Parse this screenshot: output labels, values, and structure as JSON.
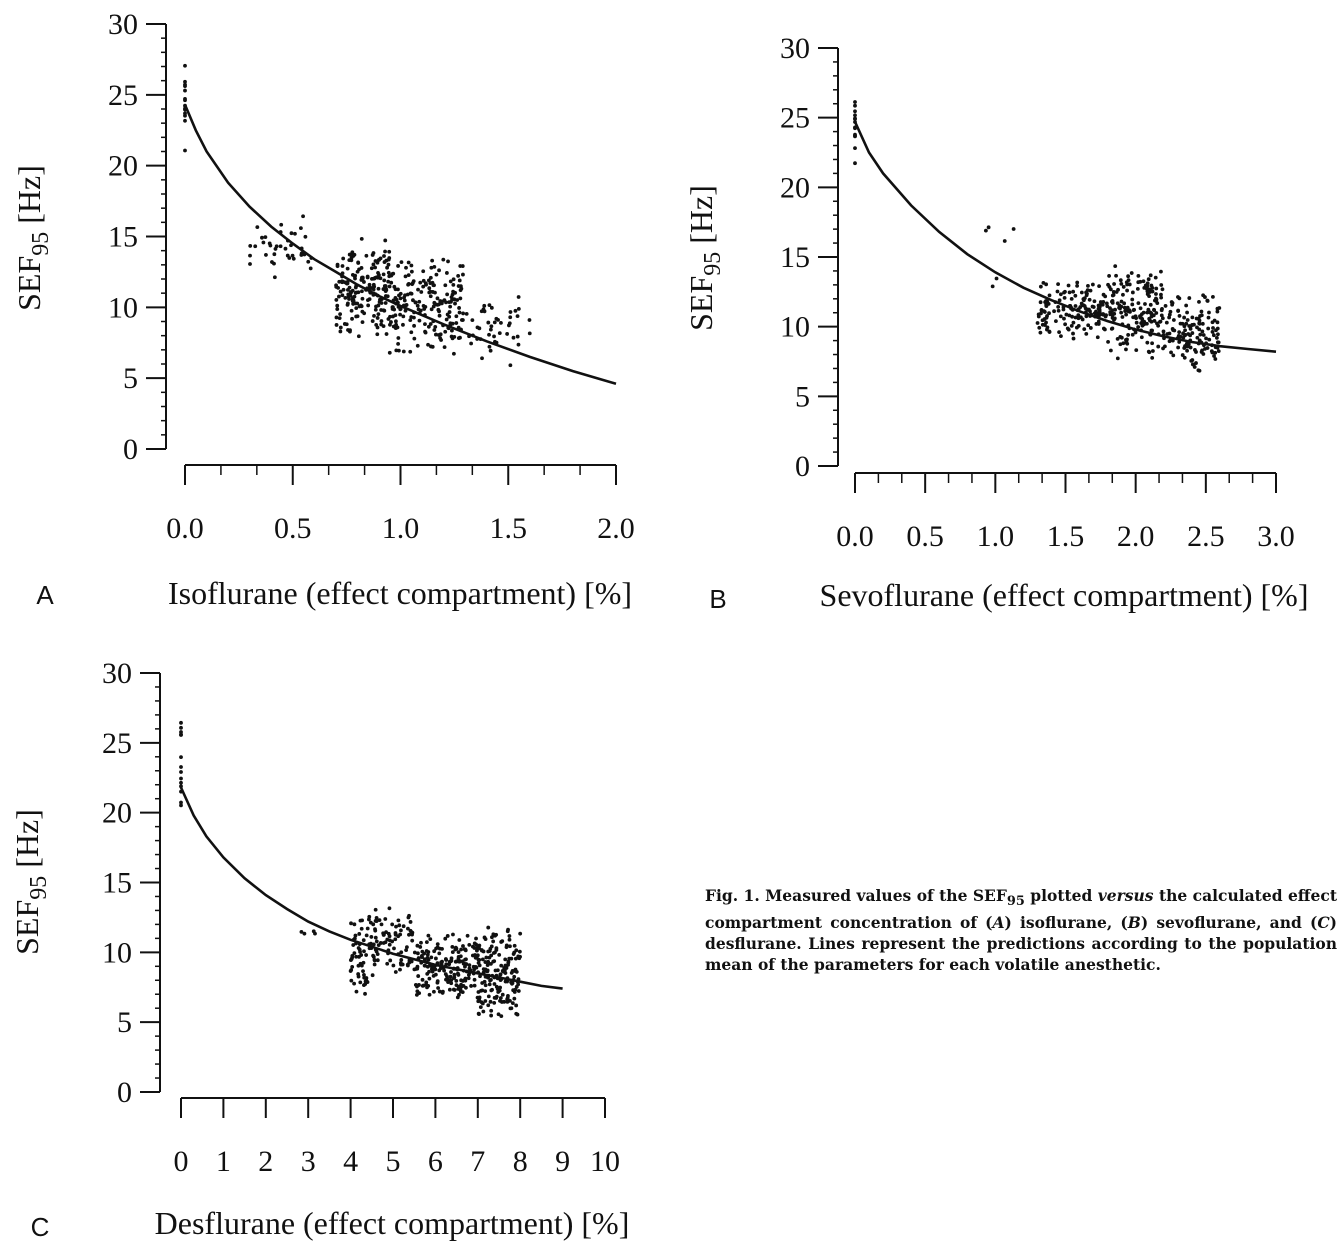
{
  "figure": {
    "caption": {
      "lead": "Fig. 1. Measured values of the SEF",
      "sub": "95",
      "mid": " plotted ",
      "versus": "versus",
      "tail_1": " the calculated effect compartment concentration of (",
      "a": "A",
      "tail_2": ") isoflurane, (",
      "b": "B",
      "tail_3": ") sevoflurane, and (",
      "c": "C",
      "tail_4": ") desflurane. Lines represent the predictions according to the population mean of the parameters for each volatile anesthetic."
    }
  },
  "chart_data": [
    {
      "type": "scatter",
      "panel": "A",
      "xlabel": "Isoflurane (effect compartment) [%]",
      "ylabel_main": "SEF",
      "ylabel_sub": "95",
      "ylabel_unit": " [Hz]",
      "xlim": [
        0,
        2.0
      ],
      "ylim": [
        0,
        30
      ],
      "x_ticks": [
        0.0,
        0.5,
        1.0,
        1.5,
        2.0
      ],
      "x_tick_labels": [
        "0.0",
        "0.5",
        "1.0",
        "1.5",
        "2.0"
      ],
      "y_ticks": [
        0,
        5,
        10,
        15,
        20,
        25,
        30
      ],
      "y_tick_labels": [
        "0",
        "5",
        "10",
        "15",
        "20",
        "25",
        "30"
      ],
      "curve": {
        "x": [
          0,
          0.05,
          0.1,
          0.2,
          0.3,
          0.4,
          0.5,
          0.6,
          0.7,
          0.8,
          0.9,
          1.0,
          1.2,
          1.4,
          1.6,
          1.8,
          2.0
        ],
        "y": [
          24.3,
          22.5,
          21.0,
          18.8,
          17.1,
          15.7,
          14.5,
          13.4,
          12.5,
          11.6,
          10.8,
          10.1,
          8.8,
          7.6,
          6.5,
          5.5,
          4.6
        ]
      },
      "point_groups": [
        {
          "x": [
            0,
            0
          ],
          "y": [
            19.5,
            29.0
          ],
          "n": 14
        },
        {
          "x": [
            0.3,
            0.6
          ],
          "y": [
            11.5,
            17.0
          ],
          "n": 40
        },
        {
          "x": [
            0.7,
            0.95
          ],
          "y": [
            7.5,
            15.0
          ],
          "n": 190
        },
        {
          "x": [
            0.95,
            1.3
          ],
          "y": [
            6.5,
            14.0
          ],
          "n": 200
        },
        {
          "x": [
            1.3,
            1.6
          ],
          "y": [
            5.5,
            11.0
          ],
          "n": 45
        }
      ]
    },
    {
      "type": "scatter",
      "panel": "B",
      "xlabel": "Sevoflurane (effect compartment) [%]",
      "ylabel_main": "SEF",
      "ylabel_sub": "95",
      "ylabel_unit": " [Hz]",
      "xlim": [
        0,
        3.0
      ],
      "ylim": [
        0,
        30
      ],
      "x_ticks": [
        0.0,
        0.5,
        1.0,
        1.5,
        2.0,
        2.5,
        3.0
      ],
      "x_tick_labels": [
        "0.0",
        "0.5",
        "1.0",
        "1.5",
        "2.0",
        "2.5",
        "3.0"
      ],
      "y_ticks": [
        0,
        5,
        10,
        15,
        20,
        25,
        30
      ],
      "y_tick_labels": [
        "0",
        "5",
        "10",
        "15",
        "20",
        "25",
        "30"
      ],
      "curve": {
        "x": [
          0,
          0.1,
          0.2,
          0.4,
          0.6,
          0.8,
          1.0,
          1.2,
          1.4,
          1.6,
          1.8,
          2.0,
          2.2,
          2.4,
          2.6,
          2.8,
          3.0
        ],
        "y": [
          24.7,
          22.5,
          21.0,
          18.7,
          16.8,
          15.2,
          13.9,
          12.8,
          11.9,
          11.1,
          10.4,
          9.8,
          9.3,
          8.9,
          8.6,
          8.4,
          8.2
        ]
      },
      "point_groups": [
        {
          "x": [
            0,
            0
          ],
          "y": [
            21.0,
            28.5
          ],
          "n": 14
        },
        {
          "x": [
            0.9,
            1.15
          ],
          "y": [
            12.5,
            19.5
          ],
          "n": 6
        },
        {
          "x": [
            1.3,
            1.8
          ],
          "y": [
            9.0,
            13.5
          ],
          "n": 150
        },
        {
          "x": [
            1.8,
            2.2
          ],
          "y": [
            7.5,
            14.5
          ],
          "n": 180
        },
        {
          "x": [
            2.2,
            2.6
          ],
          "y": [
            6.5,
            12.5
          ],
          "n": 140
        }
      ]
    },
    {
      "type": "scatter",
      "panel": "C",
      "xlabel": "Desflurane (effect compartment) [%]",
      "ylabel_main": "SEF",
      "ylabel_sub": "95",
      "ylabel_unit": " [Hz]",
      "xlim": [
        0,
        10
      ],
      "ylim": [
        0,
        30
      ],
      "x_ticks": [
        0,
        1,
        2,
        3,
        4,
        5,
        6,
        7,
        8,
        9,
        10
      ],
      "x_tick_labels": [
        "0",
        "1",
        "2",
        "3",
        "4",
        "5",
        "6",
        "7",
        "8",
        "9",
        "10"
      ],
      "y_ticks": [
        0,
        5,
        10,
        15,
        20,
        25,
        30
      ],
      "y_tick_labels": [
        "0",
        "5",
        "10",
        "15",
        "20",
        "25",
        "30"
      ],
      "curve": {
        "x": [
          0,
          0.3,
          0.6,
          1,
          1.5,
          2,
          2.5,
          3,
          3.5,
          4,
          4.5,
          5,
          5.5,
          6,
          6.5,
          7,
          7.5,
          8,
          8.5,
          9
        ],
        "y": [
          21.8,
          19.8,
          18.3,
          16.8,
          15.3,
          14.1,
          13.1,
          12.2,
          11.5,
          10.9,
          10.4,
          9.9,
          9.5,
          9.1,
          8.8,
          8.5,
          8.2,
          7.9,
          7.6,
          7.4
        ]
      },
      "point_groups": [
        {
          "x": [
            0,
            0
          ],
          "y": [
            19.0,
            28.5
          ],
          "n": 14
        },
        {
          "x": [
            2.6,
            3.3
          ],
          "y": [
            10.8,
            11.8
          ],
          "n": 4
        },
        {
          "x": [
            4.0,
            4.4
          ],
          "y": [
            6.5,
            12.8
          ],
          "n": 50
        },
        {
          "x": [
            4.4,
            5.5
          ],
          "y": [
            8.0,
            13.5
          ],
          "n": 90
        },
        {
          "x": [
            5.5,
            7.0
          ],
          "y": [
            6.5,
            11.5
          ],
          "n": 200
        },
        {
          "x": [
            7.0,
            8.0
          ],
          "y": [
            4.8,
            12.3
          ],
          "n": 170
        }
      ]
    }
  ]
}
